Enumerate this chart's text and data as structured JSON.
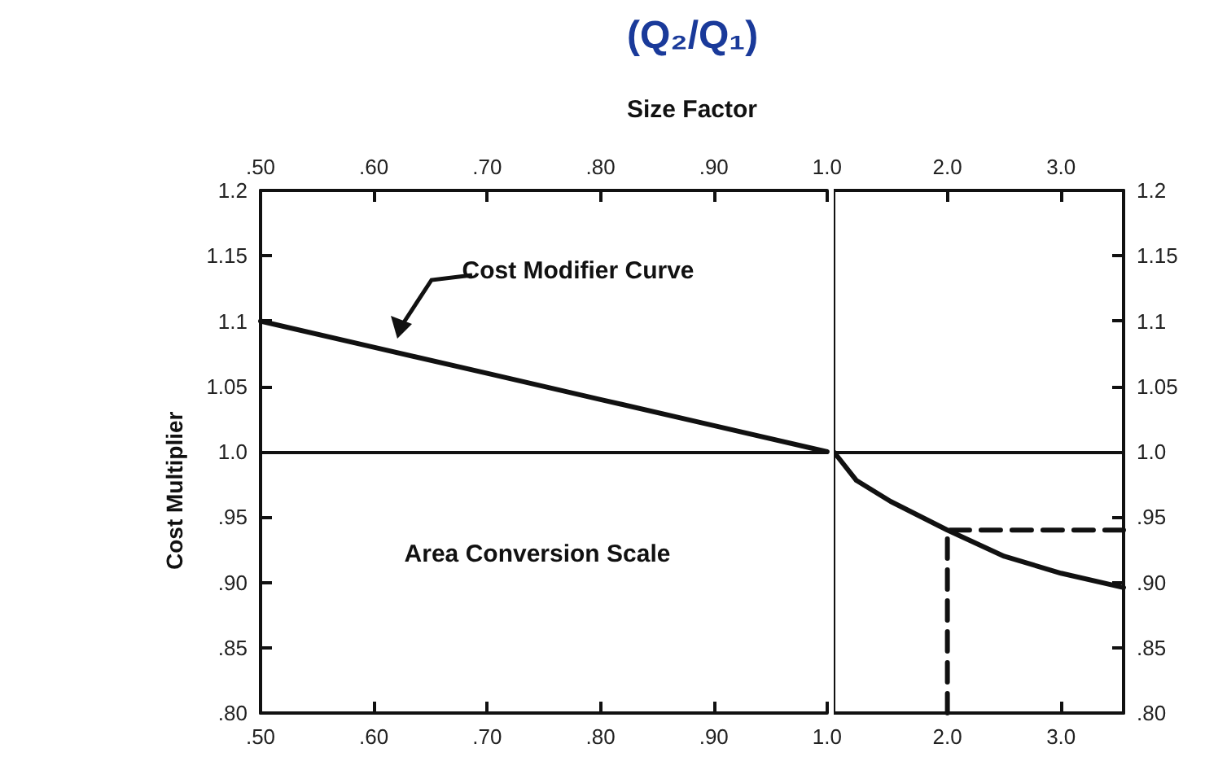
{
  "chart_data": [
    {
      "type": "line",
      "title": "(Q₂/Q₁)",
      "xlabel": "Size Factor",
      "ylabel": "Cost Multiplier",
      "annotations": [
        "Cost Modifier Curve",
        "Area Conversion Scale"
      ],
      "x": [
        0.5,
        0.6,
        0.7,
        0.8,
        0.9,
        1.0
      ],
      "series": [
        {
          "color": "#111111",
          "values": [
            1.1,
            1.08,
            1.06,
            1.04,
            1.02,
            1.0
          ]
        }
      ],
      "xlim": [
        0.5,
        1.0
      ],
      "xticks": [
        {
          "value": 0.5,
          "label": ".50"
        },
        {
          "value": 0.6,
          "label": ".60"
        },
        {
          "value": 0.7,
          "label": ".70"
        },
        {
          "value": 0.8,
          "label": ".80"
        },
        {
          "value": 0.9,
          "label": ".90"
        },
        {
          "value": 1.0,
          "label": "1.0"
        }
      ],
      "x2lim": [
        0.5,
        1.0
      ],
      "x2ticks": [
        {
          "value": 0.5,
          "label": ".50"
        },
        {
          "value": 0.6,
          "label": ".60"
        },
        {
          "value": 0.7,
          "label": ".70"
        },
        {
          "value": 0.8,
          "label": ".80"
        },
        {
          "value": 0.9,
          "label": ".90"
        },
        {
          "value": 1.0,
          "label": "1.0"
        }
      ],
      "ylim": [
        0.8,
        1.2
      ],
      "yticks": [
        {
          "value": 0.8,
          "label": ".80"
        },
        {
          "value": 0.85,
          "label": ".85"
        },
        {
          "value": 0.9,
          "label": ".90"
        },
        {
          "value": 0.95,
          "label": ".95"
        },
        {
          "value": 1.0,
          "label": "1.0"
        },
        1.05,
        1.1,
        1.15,
        1.2
      ],
      "ref_lines": [
        {
          "axis": "y",
          "value": 1.0
        }
      ],
      "marker": "none",
      "line_style": "solid"
    },
    {
      "type": "line",
      "series": [
        {
          "color": "#111111",
          "axis": "y2",
          "x": [
            1.0,
            1.2,
            1.5,
            2.0,
            2.5,
            3.0,
            3.55
          ],
          "values": [
            1.0,
            0.978,
            0.962,
            0.94,
            0.92,
            0.907,
            0.896
          ]
        },
        {
          "color": "#111111",
          "axis": "y2",
          "line_style": "dashed",
          "x": [
            2.0,
            2.0,
            3.55
          ],
          "values": [
            0.8,
            0.94,
            0.94
          ]
        }
      ],
      "xlim": [
        1.0,
        3.55
      ],
      "xticks": [
        {
          "value": 2.0,
          "label": "2.0"
        },
        {
          "value": 3.0,
          "label": "3.0"
        }
      ],
      "x2lim": [
        1.0,
        3.55
      ],
      "x2ticks": [
        {
          "value": 2.0,
          "label": "2.0"
        },
        {
          "value": 3.0,
          "label": "3.0"
        }
      ],
      "y2lim": [
        0.8,
        1.2
      ],
      "y2ticks": [
        {
          "value": 0.8,
          "label": ".80"
        },
        {
          "value": 0.85,
          "label": ".85"
        },
        {
          "value": 0.9,
          "label": ".90"
        },
        {
          "value": 0.95,
          "label": ".95"
        },
        {
          "value": 1.0,
          "label": "1.0"
        },
        1.05,
        1.1,
        1.15,
        1.2
      ],
      "ref_lines": [
        {
          "axis": "y2",
          "value": 1.0
        }
      ],
      "marker": "none",
      "line_style": "solid"
    }
  ]
}
